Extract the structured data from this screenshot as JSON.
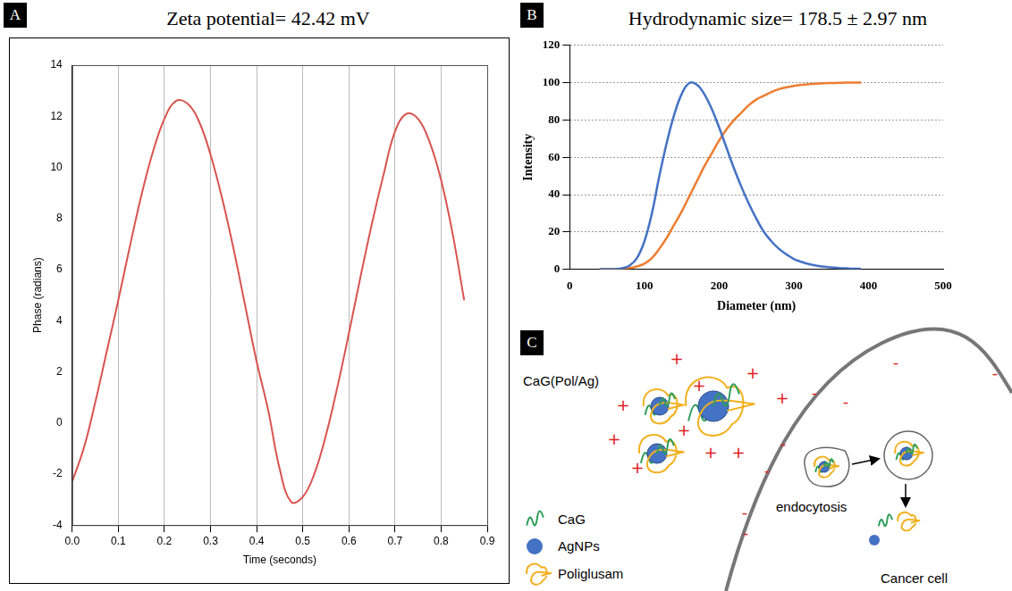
{
  "chart_data": [
    {
      "panel": "A",
      "type": "line",
      "title": "Zeta potential= 42.42 mV",
      "x_label": "Time (seconds)",
      "y_label": "Phase (radians)",
      "x": [
        0,
        0.025,
        0.05,
        0.075,
        0.1,
        0.125,
        0.15,
        0.175,
        0.2,
        0.225,
        0.25,
        0.275,
        0.3,
        0.325,
        0.35,
        0.375,
        0.4,
        0.425,
        0.45,
        0.475,
        0.5,
        0.525,
        0.55,
        0.575,
        0.6,
        0.625,
        0.65,
        0.675,
        0.7,
        0.725,
        0.75,
        0.775,
        0.8,
        0.825,
        0.85
      ],
      "values": [
        -2.3,
        -1.0,
        0.8,
        2.8,
        4.8,
        6.9,
        8.9,
        10.6,
        11.9,
        12.6,
        12.5,
        11.8,
        10.5,
        8.8,
        6.8,
        4.6,
        2.4,
        0.5,
        -1.8,
        -3.1,
        -2.9,
        -2.0,
        -0.5,
        1.4,
        3.5,
        5.7,
        7.8,
        9.7,
        11.4,
        12.1,
        11.9,
        11.0,
        9.5,
        7.4,
        4.8
      ],
      "color": "#d9534f",
      "xlim": [
        0,
        0.9
      ],
      "xticks": [
        {
          "value": 0,
          "label": "0.0"
        },
        0.1,
        0.2,
        0.3,
        0.4,
        0.5,
        0.6,
        0.7,
        0.8,
        0.9
      ],
      "ylim": [
        -4,
        14
      ],
      "yticks": [
        -4,
        -2,
        0,
        2,
        4,
        6,
        8,
        10,
        12,
        14
      ],
      "grid": "x"
    },
    {
      "panel": "B",
      "type": "line",
      "title": "Hydrodynamic size= 178.5 ± 2.97 nm",
      "x_label": "Diameter (nm)",
      "y_label": "Intensity",
      "x": [
        40,
        50,
        60,
        70,
        80,
        90,
        100,
        110,
        120,
        130,
        140,
        150,
        160,
        170,
        180,
        190,
        200,
        210,
        220,
        230,
        240,
        250,
        260,
        270,
        280,
        290,
        300,
        310,
        320,
        330,
        340,
        350,
        360,
        370,
        380,
        390
      ],
      "series": [
        {
          "color": "#4472c4",
          "values": [
            0,
            0,
            0.1,
            0.5,
            2,
            6,
            15,
            30,
            50,
            68,
            83,
            94,
            99.8,
            99,
            94,
            86,
            76,
            65,
            54,
            44,
            35,
            27,
            20,
            15,
            11,
            8,
            5.5,
            4,
            2.8,
            2,
            1.4,
            1,
            0.7,
            0.5,
            0.3,
            0.2
          ]
        },
        {
          "color": "#ed7d31",
          "values": [
            0,
            0,
            0,
            0.2,
            0.6,
            1.5,
            3,
            6,
            11,
            17,
            24,
            31,
            39,
            47,
            55,
            62,
            69,
            75,
            80,
            84,
            88,
            91,
            93,
            95,
            96.5,
            97.5,
            98.3,
            98.8,
            99.2,
            99.5,
            99.7,
            99.8,
            99.9,
            100,
            100,
            100
          ]
        }
      ],
      "xlim": [
        0,
        500
      ],
      "xticks": [
        0,
        100,
        200,
        300,
        400,
        500
      ],
      "ylim": [
        0,
        120
      ],
      "yticks": [
        0,
        20,
        40,
        60,
        80,
        100,
        120
      ],
      "grid": "y"
    }
  ],
  "diagram": {
    "panel": "C",
    "particle_label": "CaG(Pol/Ag)",
    "charges": {
      "positive": "+",
      "negative": "-"
    },
    "key_items": [
      "CaG",
      "AgNPs",
      "Poliglusam"
    ],
    "process_label": "endocytosis",
    "cell_label": "Cancer cell"
  }
}
